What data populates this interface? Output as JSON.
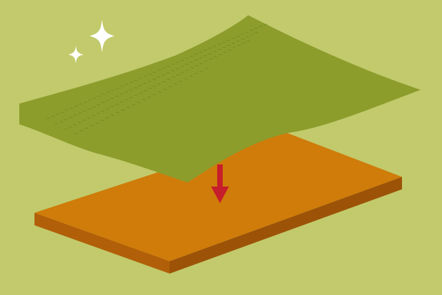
{
  "colors": {
    "background": "#c3cc6b",
    "background_noise": "#b6bf5e",
    "sheet": "#8c9d2c",
    "sheet_holes": "#6e7f1c",
    "slab_top": "#cf7c0a",
    "slab_front": "#9c5308",
    "slab_side": "#7d4206",
    "arrow": "#c71e2b",
    "sparkle": "#ffffff"
  },
  "icons": {
    "sparkle_large": "sparkle-icon",
    "sparkle_small": "sparkle-icon",
    "arrow": "arrow-down-icon"
  }
}
